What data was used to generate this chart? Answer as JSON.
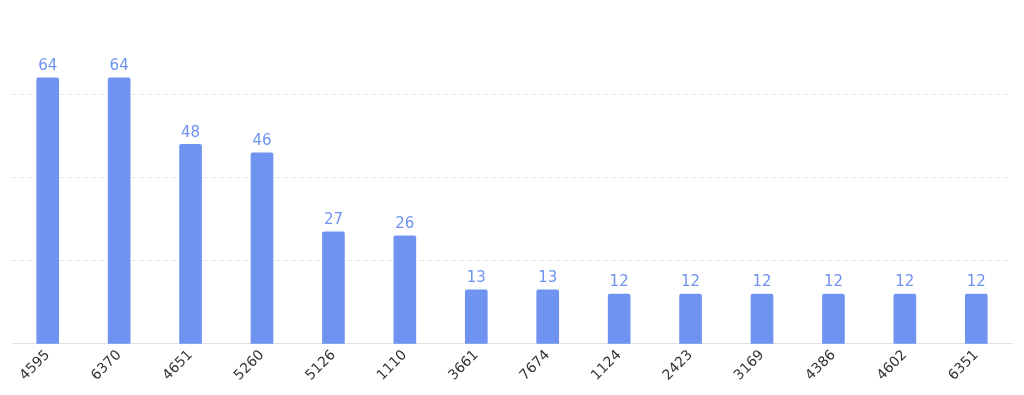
{
  "chart_data": {
    "type": "bar",
    "categories": [
      "4595",
      "6370",
      "4651",
      "5260",
      "5126",
      "1110",
      "3661",
      "7674",
      "1124",
      "2423",
      "3169",
      "4386",
      "4602",
      "6351"
    ],
    "values": [
      64,
      64,
      48,
      46,
      27,
      26,
      13,
      13,
      12,
      12,
      12,
      12,
      12,
      12
    ],
    "color": "#6e93f0",
    "yticks": [
      0,
      20,
      40,
      60
    ],
    "grid": "y",
    "tick_labels": "x",
    "data_labels": true
  }
}
